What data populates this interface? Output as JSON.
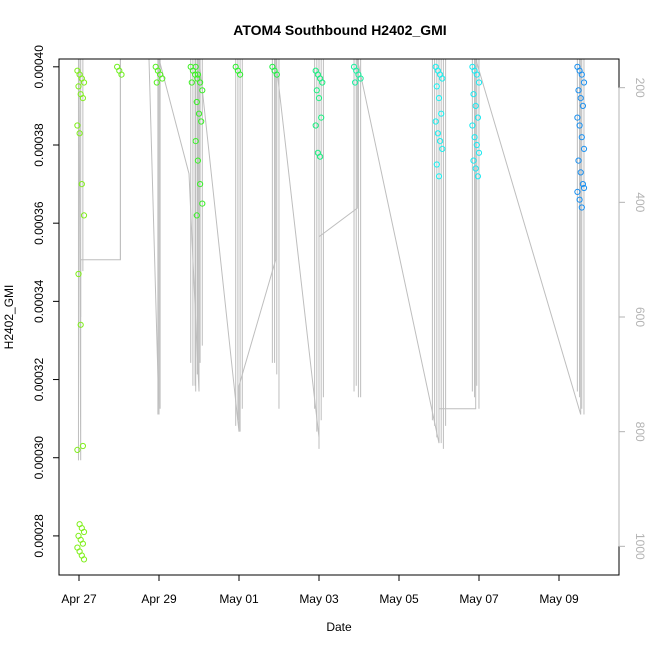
{
  "chart_data": {
    "type": "scatter",
    "title": "ATOM4 Southbound H2402_GMI",
    "xlabel": "Date",
    "ylabel": "H2402_GMI",
    "xlim": [
      "2018-04-26T12:00",
      "2018-05-10T12:00"
    ],
    "ylim": [
      0.00027,
      0.000402
    ],
    "ylim_right": [
      1050,
      150
    ],
    "x_ticks": [
      {
        "date": "2018-04-27",
        "label": "Apr 27"
      },
      {
        "date": "2018-04-29",
        "label": "Apr 29"
      },
      {
        "date": "2018-05-01",
        "label": "May 01"
      },
      {
        "date": "2018-05-03",
        "label": "May 03"
      },
      {
        "date": "2018-05-05",
        "label": "May 05"
      },
      {
        "date": "2018-05-07",
        "label": "May 07"
      },
      {
        "date": "2018-05-09",
        "label": "May 09"
      }
    ],
    "y_ticks": [
      {
        "value": 0.00028,
        "label": "0.00028"
      },
      {
        "value": 0.0003,
        "label": "0.00030"
      },
      {
        "value": 0.00032,
        "label": "0.00032"
      },
      {
        "value": 0.00034,
        "label": "0.00034"
      },
      {
        "value": 0.00036,
        "label": "0.00036"
      },
      {
        "value": 0.00038,
        "label": "0.00038"
      },
      {
        "value": 0.0004,
        "label": "0.00040"
      }
    ],
    "y_ticks_right": [
      {
        "value": 200,
        "label": "200"
      },
      {
        "value": 400,
        "label": "400"
      },
      {
        "value": 600,
        "label": "600"
      },
      {
        "value": 800,
        "label": "800"
      },
      {
        "value": 1000,
        "label": "1000"
      }
    ],
    "grid": false,
    "clusters": [
      {
        "t": "2018-04-27T01:00",
        "color": "#7FEF1A",
        "values": [
          0.000399,
          0.000398,
          0.000397,
          0.000396,
          0.000395,
          0.000393,
          0.000392,
          0.000385,
          0.000383,
          0.00037,
          0.000362,
          0.000347,
          0.000334,
          0.000303,
          0.000302,
          0.000283,
          0.000282,
          0.000281,
          0.00028,
          0.000279,
          0.000278,
          0.000277,
          0.000276,
          0.000275,
          0.000274
        ]
      },
      {
        "t": "2018-04-28T00:50",
        "color": "#6EF01D",
        "values": [
          0.0004,
          0.000399,
          0.000398
        ]
      },
      {
        "t": "2018-04-29T00:00",
        "color": "#55F020",
        "values": [
          0.0004,
          0.000399,
          0.000398,
          0.000397,
          0.000396
        ]
      },
      {
        "t": "2018-04-29T21:00",
        "color": "#3FF024",
        "values": [
          0.0004,
          0.000399,
          0.000398,
          0.000397,
          0.000396
        ]
      },
      {
        "t": "2018-04-30T00:00",
        "color": "#38F026",
        "values": [
          0.0004,
          0.000398,
          0.000396,
          0.000394,
          0.000391,
          0.000388,
          0.000386,
          0.000381,
          0.000376,
          0.00037,
          0.000365,
          0.000362
        ]
      },
      {
        "t": "2018-05-01T00:00",
        "color": "#2AF02A",
        "values": [
          0.0004,
          0.000399,
          0.000398
        ]
      },
      {
        "t": "2018-05-01T22:00",
        "color": "#1EF040",
        "values": [
          0.0004,
          0.000399,
          0.000398
        ]
      },
      {
        "t": "2018-05-03T00:00",
        "color": "#1AF080",
        "values": [
          0.000399,
          0.000398,
          0.000397,
          0.000396,
          0.000394,
          0.000392,
          0.000387,
          0.000385,
          0.000378,
          0.000377
        ]
      },
      {
        "t": "2018-05-03T23:00",
        "color": "#1AF0A0",
        "values": [
          0.0004,
          0.000399,
          0.000398,
          0.000397,
          0.000396
        ]
      },
      {
        "t": "2018-05-06T00:00",
        "color": "#1AF0F0",
        "values": [
          0.0004,
          0.000399,
          0.000398,
          0.000397,
          0.000395,
          0.000392,
          0.000388,
          0.000386,
          0.000383,
          0.000381,
          0.000379,
          0.000375,
          0.000372
        ]
      },
      {
        "t": "2018-05-06T22:00",
        "color": "#1AE8F0",
        "values": [
          0.0004,
          0.000399,
          0.000398,
          0.000396,
          0.000393,
          0.00039,
          0.000387,
          0.000385,
          0.000382,
          0.00038,
          0.000378,
          0.000376,
          0.000374,
          0.000372
        ]
      },
      {
        "t": "2018-05-09T13:00",
        "color": "#1A90F0",
        "values": [
          0.0004,
          0.000399,
          0.000398,
          0.000396,
          0.000394,
          0.000392,
          0.00039,
          0.000387,
          0.000385,
          0.000382,
          0.000379,
          0.000376,
          0.000373,
          0.00037,
          0.000368,
          0.000366,
          0.000364,
          0.000369
        ]
      }
    ],
    "depth_trace": [
      {
        "t": "2018-04-27T00:00",
        "depth": 150
      },
      {
        "t": "2018-04-27T01:00",
        "depth": 850
      },
      {
        "t": "2018-04-27T01:00",
        "depth": 500
      },
      {
        "t": "2018-04-28T00:50",
        "depth": 500
      },
      {
        "t": "2018-04-28T00:50",
        "depth": 150
      },
      {
        "t": "2018-04-28T18:00",
        "depth": 150
      },
      {
        "t": "2018-04-29T00:00",
        "depth": 770
      },
      {
        "t": "2018-04-29T00:00",
        "depth": 150
      },
      {
        "t": "2018-04-29T18:00",
        "depth": 350
      },
      {
        "t": "2018-04-30T00:00",
        "depth": 730
      },
      {
        "t": "2018-04-30T00:00",
        "depth": 150
      },
      {
        "t": "2018-05-01T00:00",
        "depth": 800
      },
      {
        "t": "2018-05-01T00:00",
        "depth": 720
      },
      {
        "t": "2018-05-01T22:00",
        "depth": 500
      },
      {
        "t": "2018-05-01T22:00",
        "depth": 150
      },
      {
        "t": "2018-05-03T00:00",
        "depth": 810
      },
      {
        "t": "2018-05-03T00:00",
        "depth": 460
      },
      {
        "t": "2018-05-03T23:00",
        "depth": 410
      },
      {
        "t": "2018-05-03T23:00",
        "depth": 150
      },
      {
        "t": "2018-05-06T00:00",
        "depth": 820
      },
      {
        "t": "2018-05-06T00:00",
        "depth": 760
      },
      {
        "t": "2018-05-06T22:00",
        "depth": 760
      },
      {
        "t": "2018-05-06T22:00",
        "depth": 150
      },
      {
        "t": "2018-05-09T13:00",
        "depth": 770
      },
      {
        "t": "2018-05-09T13:00",
        "depth": 150
      }
    ],
    "profiles": [
      {
        "t": "2018-04-27T01:00",
        "bottoms": [
          850,
          600,
          520
        ]
      },
      {
        "t": "2018-04-28T00:50",
        "bottoms": [
          500
        ]
      },
      {
        "t": "2018-04-29T00:00",
        "bottoms": [
          770,
          760
        ]
      },
      {
        "t": "2018-04-29T21:00",
        "bottoms": [
          680,
          720,
          720,
          700
        ]
      },
      {
        "t": "2018-04-30T00:00",
        "bottoms": [
          730,
          700,
          680,
          650
        ]
      },
      {
        "t": "2018-05-01T00:00",
        "bottoms": [
          790,
          780,
          800,
          760
        ]
      },
      {
        "t": "2018-05-01T22:00",
        "bottoms": [
          680,
          680,
          700,
          760
        ]
      },
      {
        "t": "2018-05-03T00:00",
        "bottoms": [
          760,
          800,
          830,
          780,
          740
        ]
      },
      {
        "t": "2018-05-03T23:00",
        "bottoms": [
          730,
          720,
          740,
          740
        ]
      },
      {
        "t": "2018-05-06T00:00",
        "bottoms": [
          780,
          790,
          810,
          800,
          820,
          830,
          790
        ]
      },
      {
        "t": "2018-05-06T22:00",
        "bottoms": [
          730,
          740,
          720,
          760
        ]
      },
      {
        "t": "2018-05-09T13:00",
        "bottoms": [
          730,
          740,
          760,
          770
        ]
      }
    ],
    "scatter_color_note": "",
    "trace_color": "#bebebe",
    "marker": "open-circle"
  }
}
